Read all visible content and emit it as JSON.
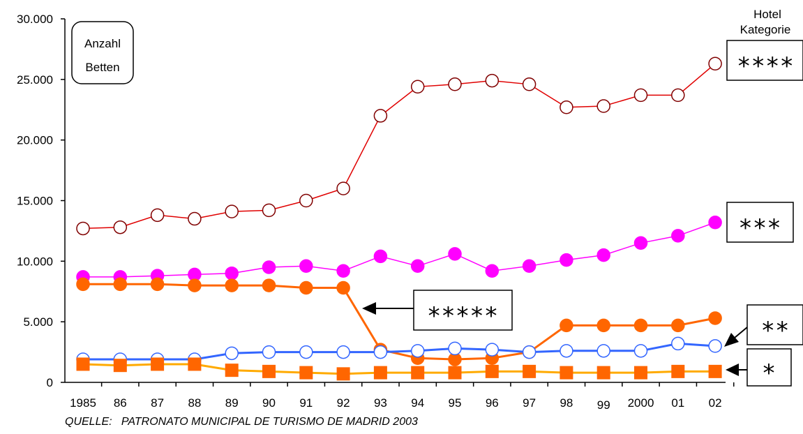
{
  "chart_data": {
    "type": "line",
    "categories": [
      "1985",
      "86",
      "87",
      "88",
      "89",
      "90",
      "91",
      "92",
      "93",
      "94",
      "95",
      "96",
      "97",
      "98",
      "99",
      "2000",
      "01",
      "02"
    ],
    "ylim": [
      0,
      30000
    ],
    "yticks": [
      "0",
      "5.000",
      "10.000",
      "15.000",
      "20.000",
      "25.000",
      "30.000"
    ],
    "ytick_values": [
      0,
      5000,
      10000,
      15000,
      20000,
      25000,
      30000
    ],
    "ylabel_box": [
      "Anzahl",
      "Betten"
    ],
    "legend_title": [
      "Hotel",
      "Kategorie"
    ],
    "grid": false,
    "series": [
      {
        "name": "****",
        "color": "#e00000",
        "marker": "open-circle",
        "marker_fill": "#ffffff",
        "marker_stroke": "#800000",
        "values": [
          12700,
          12800,
          13800,
          13500,
          14100,
          14200,
          15000,
          16000,
          22000,
          24400,
          24600,
          24900,
          24600,
          22700,
          22800,
          23700,
          23700,
          26300
        ]
      },
      {
        "name": "***",
        "color": "#ff00ff",
        "marker": "filled-circle",
        "marker_fill": "#ff00ff",
        "marker_stroke": "#ff00ff",
        "values": [
          8700,
          8700,
          8800,
          8900,
          9000,
          9500,
          9600,
          9200,
          10400,
          9600,
          10600,
          9200,
          9600,
          10100,
          10500,
          11500,
          12100,
          13200
        ]
      },
      {
        "name": "*****",
        "color": "#ff6600",
        "marker": "filled-circle",
        "marker_fill": "#ff6600",
        "marker_stroke": "#ff6600",
        "values": [
          8100,
          8100,
          8100,
          8000,
          8000,
          8000,
          7800,
          7800,
          2700,
          2000,
          1900,
          2000,
          2500,
          4700,
          4700,
          4700,
          4700,
          5300
        ]
      },
      {
        "name": "**",
        "color": "#3366ff",
        "marker": "open-circle",
        "marker_fill": "#ffffff",
        "marker_stroke": "#3366ff",
        "values": [
          1900,
          1900,
          1900,
          1900,
          2400,
          2500,
          2500,
          2500,
          2500,
          2600,
          2800,
          2700,
          2500,
          2600,
          2600,
          2600,
          3200,
          3000
        ]
      },
      {
        "name": "*",
        "color": "#ffaa00",
        "marker": "filled-square",
        "marker_fill": "#ff6600",
        "marker_stroke": "#ff6600",
        "values": [
          1500,
          1400,
          1500,
          1500,
          1000,
          900,
          800,
          700,
          800,
          800,
          800,
          900,
          900,
          800,
          800,
          800,
          900,
          900
        ]
      }
    ],
    "annotations": [
      "****",
      "***",
      "*****",
      "**",
      "*"
    ]
  },
  "source": "QUELLE:   PATRONATO MUNICIPAL DE TURISMO DE MADRID 2003"
}
